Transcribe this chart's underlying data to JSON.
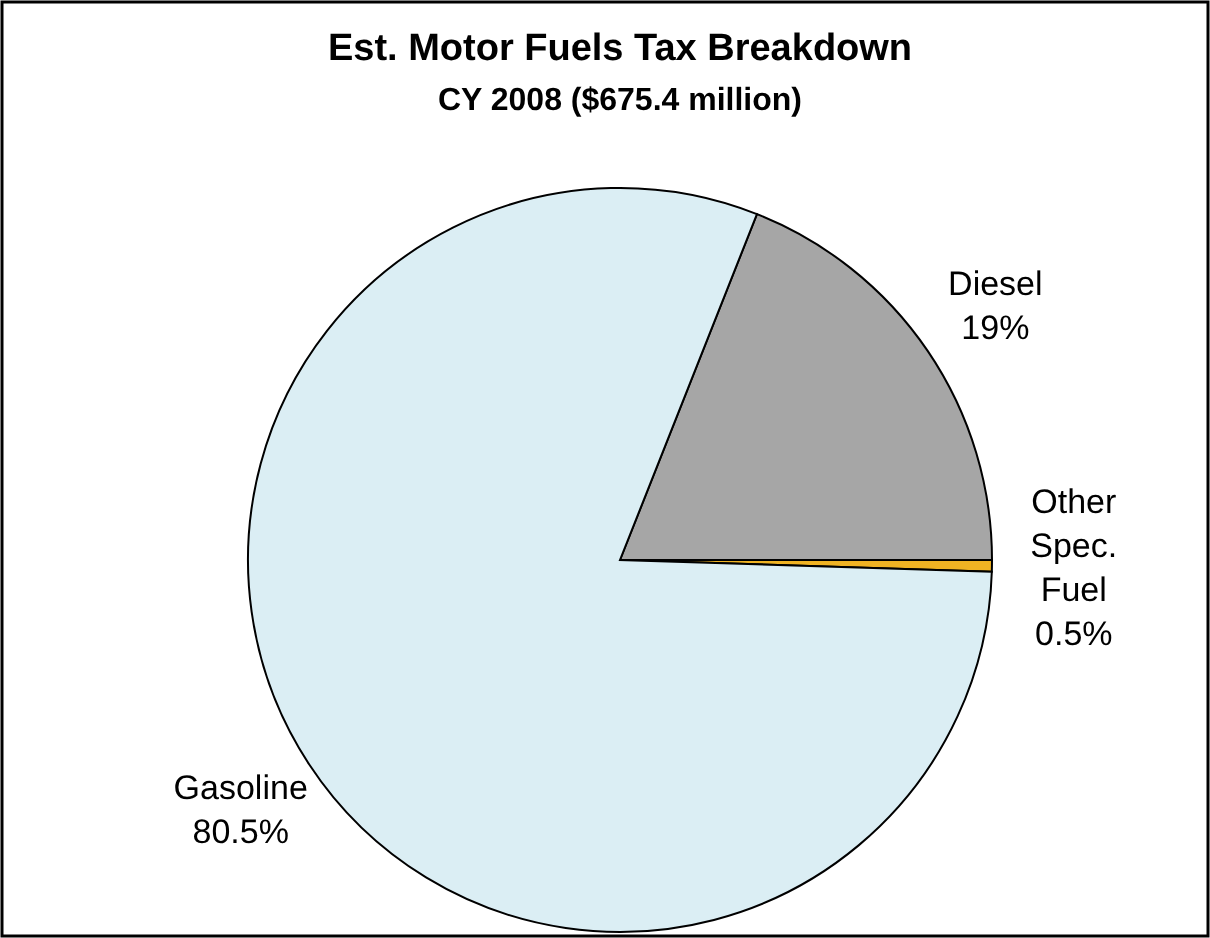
{
  "chart_data": {
    "type": "pie",
    "title": "Est. Motor Fuels Tax Breakdown",
    "subtitle": "CY 2008 ($675.4 million)",
    "categories": [
      "Diesel",
      "Other Spec. Fuel",
      "Gasoline"
    ],
    "values": [
      19,
      0.5,
      80.5
    ],
    "value_labels": [
      "19%",
      "0.5%",
      "80.5%"
    ],
    "colors": [
      "#a6a6a6",
      "#f0b323",
      "#dbeef4"
    ]
  }
}
